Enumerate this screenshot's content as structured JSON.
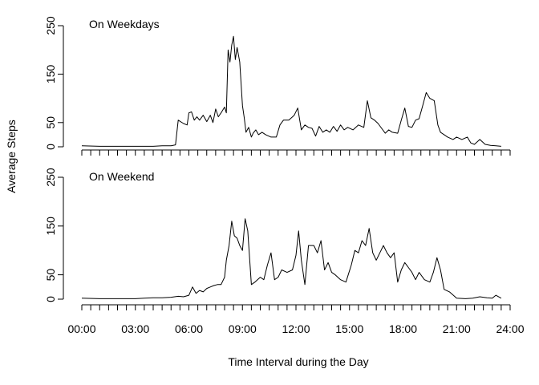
{
  "chart_data": {
    "type": "line",
    "ylabel": "Average Steps",
    "xlabel": "Time Interval during the Day",
    "xlim_hours": [
      0,
      24
    ],
    "ylim": [
      0,
      250
    ],
    "xticks": [
      "00:00",
      "03:00",
      "06:00",
      "09:00",
      "12:00",
      "15:00",
      "18:00",
      "21:00",
      "24:00"
    ],
    "yticks": [
      0,
      50,
      150,
      250
    ],
    "grid": false,
    "panels": [
      {
        "title": "On Weekdays",
        "points": [
          [
            0.0,
            2
          ],
          [
            1.0,
            1
          ],
          [
            2.0,
            1
          ],
          [
            3.0,
            1
          ],
          [
            4.0,
            1
          ],
          [
            4.5,
            2
          ],
          [
            5.0,
            2
          ],
          [
            5.25,
            4
          ],
          [
            5.4,
            55
          ],
          [
            5.7,
            48
          ],
          [
            5.9,
            45
          ],
          [
            6.0,
            70
          ],
          [
            6.15,
            72
          ],
          [
            6.3,
            55
          ],
          [
            6.45,
            62
          ],
          [
            6.6,
            55
          ],
          [
            6.8,
            65
          ],
          [
            7.0,
            52
          ],
          [
            7.2,
            65
          ],
          [
            7.35,
            50
          ],
          [
            7.5,
            78
          ],
          [
            7.65,
            62
          ],
          [
            7.8,
            70
          ],
          [
            8.0,
            82
          ],
          [
            8.1,
            70
          ],
          [
            8.2,
            200
          ],
          [
            8.3,
            175
          ],
          [
            8.4,
            210
          ],
          [
            8.5,
            228
          ],
          [
            8.6,
            180
          ],
          [
            8.7,
            205
          ],
          [
            8.85,
            175
          ],
          [
            9.0,
            85
          ],
          [
            9.1,
            60
          ],
          [
            9.2,
            30
          ],
          [
            9.35,
            40
          ],
          [
            9.5,
            20
          ],
          [
            9.6,
            28
          ],
          [
            9.75,
            35
          ],
          [
            9.9,
            25
          ],
          [
            10.1,
            30
          ],
          [
            10.3,
            25
          ],
          [
            10.6,
            20
          ],
          [
            10.9,
            20
          ],
          [
            11.1,
            45
          ],
          [
            11.3,
            55
          ],
          [
            11.6,
            55
          ],
          [
            11.9,
            65
          ],
          [
            12.1,
            80
          ],
          [
            12.3,
            35
          ],
          [
            12.5,
            45
          ],
          [
            12.7,
            40
          ],
          [
            12.9,
            38
          ],
          [
            13.1,
            22
          ],
          [
            13.3,
            42
          ],
          [
            13.5,
            30
          ],
          [
            13.7,
            35
          ],
          [
            13.9,
            30
          ],
          [
            14.1,
            42
          ],
          [
            14.3,
            32
          ],
          [
            14.5,
            45
          ],
          [
            14.7,
            35
          ],
          [
            14.9,
            40
          ],
          [
            15.2,
            35
          ],
          [
            15.5,
            45
          ],
          [
            15.8,
            40
          ],
          [
            16.0,
            95
          ],
          [
            16.2,
            60
          ],
          [
            16.4,
            55
          ],
          [
            16.6,
            48
          ],
          [
            16.8,
            38
          ],
          [
            17.0,
            28
          ],
          [
            17.2,
            35
          ],
          [
            17.4,
            30
          ],
          [
            17.7,
            28
          ],
          [
            17.9,
            55
          ],
          [
            18.1,
            80
          ],
          [
            18.3,
            42
          ],
          [
            18.5,
            40
          ],
          [
            18.7,
            55
          ],
          [
            18.9,
            58
          ],
          [
            19.1,
            85
          ],
          [
            19.3,
            112
          ],
          [
            19.5,
            100
          ],
          [
            19.75,
            95
          ],
          [
            19.95,
            45
          ],
          [
            20.1,
            30
          ],
          [
            20.3,
            25
          ],
          [
            20.5,
            20
          ],
          [
            20.8,
            15
          ],
          [
            21.0,
            20
          ],
          [
            21.3,
            15
          ],
          [
            21.6,
            20
          ],
          [
            21.8,
            8
          ],
          [
            22.0,
            5
          ],
          [
            22.3,
            15
          ],
          [
            22.6,
            5
          ],
          [
            22.9,
            3
          ],
          [
            23.2,
            2
          ],
          [
            23.5,
            1
          ]
        ]
      },
      {
        "title": "On Weekend",
        "points": [
          [
            0.0,
            2
          ],
          [
            1.0,
            1
          ],
          [
            2.0,
            1
          ],
          [
            3.0,
            1
          ],
          [
            3.5,
            2
          ],
          [
            4.0,
            3
          ],
          [
            4.5,
            3
          ],
          [
            5.0,
            4
          ],
          [
            5.4,
            6
          ],
          [
            5.7,
            5
          ],
          [
            6.0,
            8
          ],
          [
            6.2,
            25
          ],
          [
            6.4,
            12
          ],
          [
            6.6,
            18
          ],
          [
            6.8,
            15
          ],
          [
            7.0,
            22
          ],
          [
            7.2,
            25
          ],
          [
            7.4,
            28
          ],
          [
            7.6,
            30
          ],
          [
            7.8,
            30
          ],
          [
            8.0,
            45
          ],
          [
            8.1,
            80
          ],
          [
            8.25,
            110
          ],
          [
            8.4,
            160
          ],
          [
            8.55,
            130
          ],
          [
            8.7,
            125
          ],
          [
            8.85,
            110
          ],
          [
            9.0,
            100
          ],
          [
            9.15,
            165
          ],
          [
            9.3,
            140
          ],
          [
            9.5,
            30
          ],
          [
            9.7,
            35
          ],
          [
            10.0,
            45
          ],
          [
            10.2,
            40
          ],
          [
            10.4,
            70
          ],
          [
            10.6,
            95
          ],
          [
            10.8,
            40
          ],
          [
            11.0,
            45
          ],
          [
            11.2,
            60
          ],
          [
            11.5,
            55
          ],
          [
            11.8,
            60
          ],
          [
            12.0,
            90
          ],
          [
            12.15,
            140
          ],
          [
            12.3,
            80
          ],
          [
            12.5,
            30
          ],
          [
            12.7,
            110
          ],
          [
            13.0,
            110
          ],
          [
            13.2,
            95
          ],
          [
            13.4,
            120
          ],
          [
            13.6,
            60
          ],
          [
            13.8,
            75
          ],
          [
            14.0,
            55
          ],
          [
            14.2,
            50
          ],
          [
            14.5,
            40
          ],
          [
            14.8,
            35
          ],
          [
            15.1,
            70
          ],
          [
            15.3,
            100
          ],
          [
            15.5,
            95
          ],
          [
            15.7,
            120
          ],
          [
            15.9,
            110
          ],
          [
            16.1,
            145
          ],
          [
            16.3,
            95
          ],
          [
            16.5,
            80
          ],
          [
            16.7,
            95
          ],
          [
            16.9,
            110
          ],
          [
            17.1,
            95
          ],
          [
            17.3,
            85
          ],
          [
            17.5,
            95
          ],
          [
            17.7,
            35
          ],
          [
            17.9,
            60
          ],
          [
            18.1,
            75
          ],
          [
            18.3,
            65
          ],
          [
            18.5,
            55
          ],
          [
            18.7,
            40
          ],
          [
            18.9,
            55
          ],
          [
            19.2,
            40
          ],
          [
            19.5,
            35
          ],
          [
            19.7,
            55
          ],
          [
            19.9,
            85
          ],
          [
            20.1,
            60
          ],
          [
            20.3,
            20
          ],
          [
            20.6,
            15
          ],
          [
            21.0,
            2
          ],
          [
            21.5,
            1
          ],
          [
            21.9,
            2
          ],
          [
            22.3,
            5
          ],
          [
            22.7,
            3
          ],
          [
            23.0,
            2
          ],
          [
            23.2,
            8
          ],
          [
            23.5,
            2
          ]
        ]
      }
    ]
  }
}
